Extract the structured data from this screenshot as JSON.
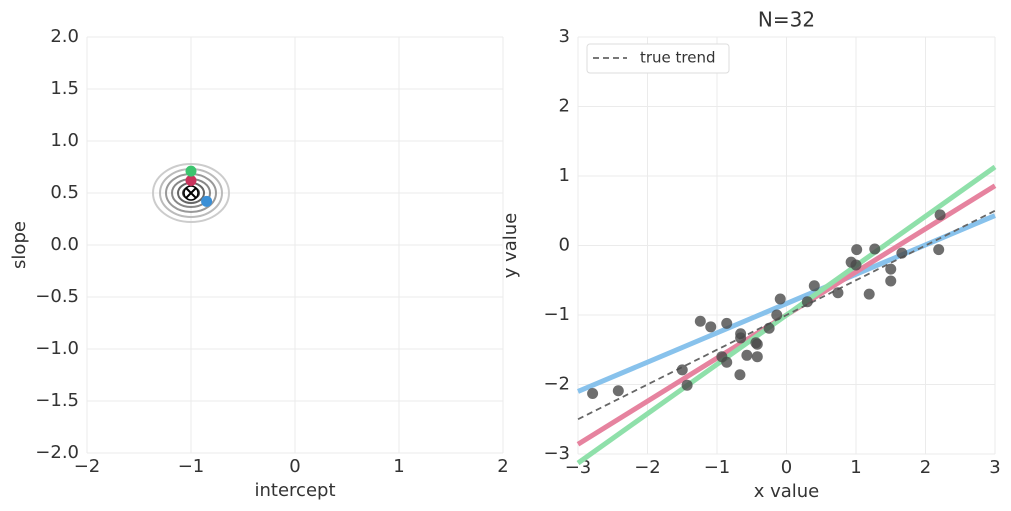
{
  "chart_data": [
    {
      "type": "scatter",
      "xlabel": "intercept",
      "ylabel": "slope",
      "xlim": [
        -2,
        2
      ],
      "ylim": [
        -2,
        2
      ],
      "xticks": [
        {
          "value": -2,
          "label": "−2"
        },
        {
          "value": -1,
          "label": "−1"
        },
        0,
        1,
        2
      ],
      "yticks": [
        {
          "value": -2,
          "label": "−2.0"
        },
        {
          "value": -1.5,
          "label": "−1.5"
        },
        {
          "value": -1,
          "label": "−1.0"
        },
        {
          "value": -0.5,
          "label": "−0.5"
        },
        {
          "value": 0,
          "label": "0.0"
        },
        {
          "value": 0.5,
          "label": "0.5"
        },
        {
          "value": 1,
          "label": "1.0"
        },
        {
          "value": 1.5,
          "label": "1.5"
        },
        {
          "value": 2,
          "label": "2.0"
        }
      ],
      "grid": true,
      "truth": {
        "x": -1,
        "y": 0.5
      },
      "series": [
        {
          "color": "#3a8fd6",
          "x": [
            -0.85
          ],
          "values": [
            0.42
          ]
        },
        {
          "color": "#c9335c",
          "x": [
            -1.0
          ],
          "values": [
            0.62
          ]
        },
        {
          "color": "#3cc46e",
          "x": [
            -1.0
          ],
          "values": [
            0.71
          ]
        }
      ]
    },
    {
      "type": "scatter",
      "title": "N=32",
      "xlabel": "x value",
      "ylabel": "y value",
      "xlim": [
        -3,
        3
      ],
      "ylim": [
        -3,
        3
      ],
      "xticks": [
        {
          "value": -3,
          "label": "−3"
        },
        {
          "value": -2,
          "label": "−2"
        },
        {
          "value": -1,
          "label": "−1"
        },
        0,
        1,
        2,
        3
      ],
      "yticks": [
        {
          "value": -3,
          "label": "−3"
        },
        {
          "value": -2,
          "label": "−2"
        },
        {
          "value": -1,
          "label": "−1"
        },
        0,
        1,
        2,
        3
      ],
      "grid": true,
      "legend": "upper left",
      "lines": [
        {
          "color": "#88c2ec",
          "x": [
            -3,
            3
          ],
          "values": [
            -2.1,
            0.43
          ]
        },
        {
          "color": "#e6839f",
          "x": [
            -3,
            3
          ],
          "values": [
            -2.86,
            0.86
          ]
        },
        {
          "color": "#8fe0aa",
          "x": [
            -3,
            3
          ],
          "values": [
            -3.13,
            1.13
          ]
        },
        {
          "name": "true trend",
          "color": "#666666",
          "dashed": true,
          "x": [
            -3,
            3
          ],
          "values": [
            -2.5,
            0.5
          ]
        }
      ],
      "points": {
        "color": "#4a4a4a",
        "x": [
          -2.79,
          -2.42,
          -1.5,
          -1.43,
          -1.24,
          -1.09,
          -0.86,
          -0.93,
          -0.86,
          -0.66,
          -0.66,
          -0.67,
          -0.57,
          -0.44,
          -0.42,
          -0.42,
          -0.25,
          -0.14,
          -0.09,
          0.3,
          0.4,
          0.74,
          0.93,
          1.0,
          1.01,
          1.19,
          1.27,
          1.5,
          1.5,
          1.66,
          2.19,
          2.21
        ],
        "values": [
          -2.13,
          -2.09,
          -1.79,
          -2.01,
          -1.09,
          -1.17,
          -1.12,
          -1.6,
          -1.68,
          -1.27,
          -1.33,
          -1.86,
          -1.58,
          -1.4,
          -1.42,
          -1.6,
          -1.19,
          -1.0,
          -0.77,
          -0.81,
          -0.58,
          -0.68,
          -0.24,
          -0.28,
          -0.06,
          -0.7,
          -0.05,
          -0.34,
          -0.51,
          -0.11,
          -0.06,
          0.44
        ]
      }
    }
  ]
}
